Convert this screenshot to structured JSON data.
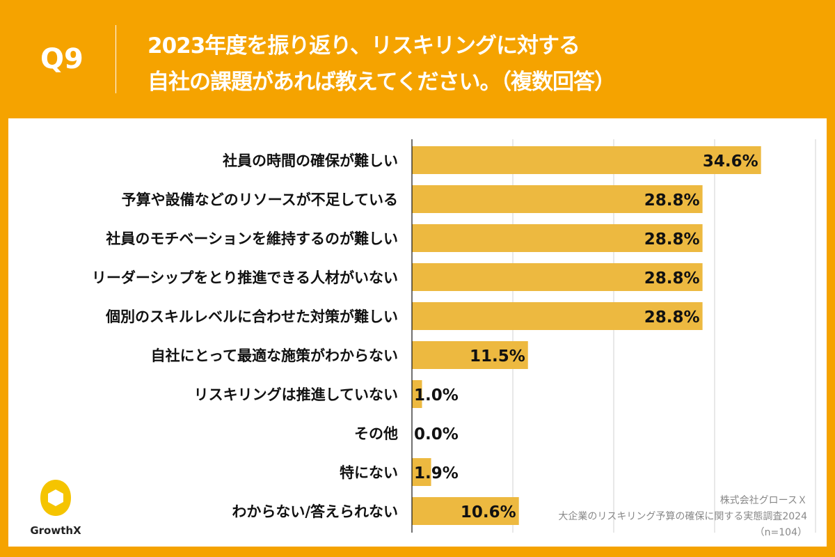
{
  "header": {
    "question": "Q9",
    "title_line1": "2023年度を振り返り、リスキリングに対する",
    "title_line2": "自社の課題があれば教えてください。（複数回答）"
  },
  "chart_data": {
    "type": "bar",
    "orientation": "horizontal",
    "title": "2023年度を振り返り、リスキリングに対する自社の課題があれば教えてください。（複数回答）",
    "categories": [
      "社員の時間の確保が難しい",
      "予算や設備などのリソースが不足している",
      "社員のモチベーションを維持するのが難しい",
      "リーダーシップをとり推進できる人材がいない",
      "個別のスキルレベルに合わせた対策が難しい",
      "自社にとって最適な施策がわからない",
      "リスキリングは推進していない",
      "その他",
      "特にない",
      "わからない/答えられない"
    ],
    "values": [
      34.6,
      28.8,
      28.8,
      28.8,
      28.8,
      11.5,
      1.0,
      0.0,
      1.9,
      10.6
    ],
    "labels": [
      "34.6%",
      "28.8%",
      "28.8%",
      "28.8%",
      "28.8%",
      "11.5%",
      "1.0%",
      "0.0%",
      "1.9%",
      "10.6%"
    ],
    "xlim": [
      0,
      40
    ],
    "grid": true,
    "unit": "%",
    "bar_color": "#EDB940"
  },
  "logo": {
    "text": "GrowthX"
  },
  "credit": {
    "company": "株式会社グロースＸ",
    "survey": "大企業のリスキリング予算の確保に関する実態調査2024",
    "n": "（n=104）"
  }
}
